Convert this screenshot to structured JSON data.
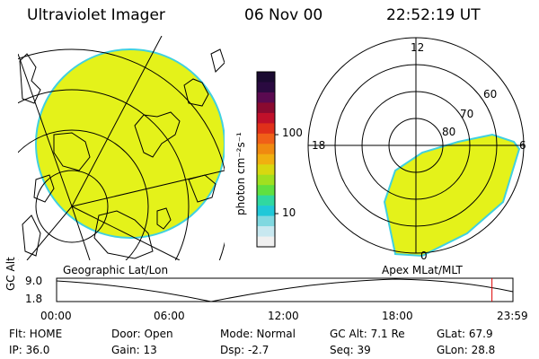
{
  "header": {
    "instrument": "Ultraviolet Imager",
    "date": "06 Nov 00",
    "time": "22:52:19 UT"
  },
  "colorbar": {
    "unit_label": "photon cm⁻²s⁻¹",
    "tick_100": "100",
    "tick_10": "10",
    "colors_top_to_bottom": [
      "#1a0a30",
      "#2a0a40",
      "#5a0a50",
      "#8a0a30",
      "#c0102a",
      "#e0301a",
      "#f06018",
      "#f08a10",
      "#f0b010",
      "#d8d810",
      "#a0e020",
      "#60e040",
      "#30d8a0",
      "#20c8d8",
      "#80d8e0",
      "#c8e8f0",
      "#f0f0f0"
    ]
  },
  "map_left": {
    "caption": "Geographic Lat/Lon",
    "fill_color": "#e4f21a"
  },
  "map_right": {
    "caption": "Apex MLat/MLT",
    "label_12": "12",
    "label_18": "18",
    "label_6": "6",
    "label_0": "0",
    "label_60": "60",
    "label_70": "70",
    "label_80": "80",
    "fill_color": "#e4f21a"
  },
  "timeline": {
    "axis_title": "GC Alt",
    "y_max": "9.0",
    "y_min": "1.8",
    "ticks": [
      "00:00",
      "06:00",
      "12:00",
      "18:00",
      "23:59"
    ],
    "current_time_fraction": 0.954
  },
  "info": {
    "flt": "Flt: HOME",
    "door": "Door: Open",
    "mode": "Mode: Normal",
    "gcalt": "GC Alt: 7.1 Re",
    "glat": "GLat:  67.9",
    "ip": "IP: 36.0",
    "gain": "Gain: 13",
    "dsp": "Dsp:   -2.7",
    "seq": "Seq: 39",
    "glon": "GLon:  28.8"
  }
}
